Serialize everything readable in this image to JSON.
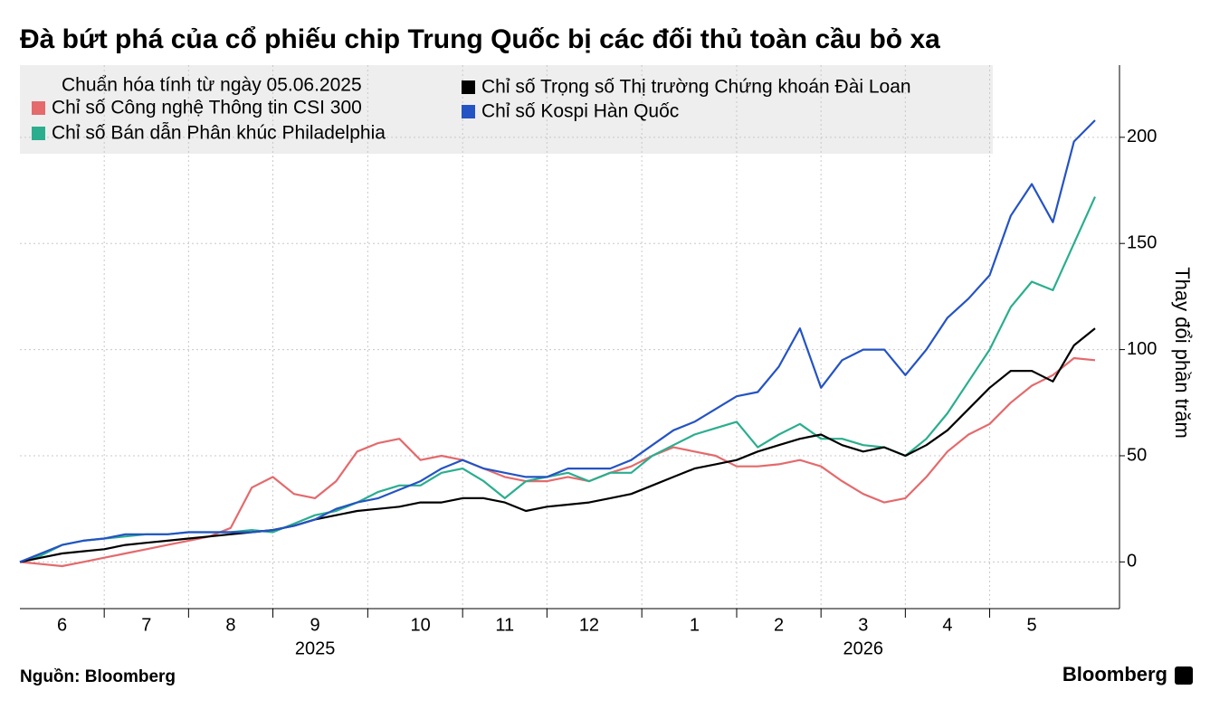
{
  "chart_data": {
    "type": "line",
    "title": "Đà bứt phá của cổ phiếu chip Trung Quốc bị các đối thủ toàn cầu bỏ xa",
    "legend_title": "Chuẩn hóa tính từ ngày 05.06.2025",
    "legend": "top-left",
    "y_label": "Thay đổi phần trăm",
    "source": "Nguồn: Bloomberg",
    "logo": "Bloomberg",
    "years": [
      "2025",
      "2026"
    ],
    "categories": [
      null,
      null,
      "6",
      null,
      null,
      null,
      "7",
      null,
      null,
      null,
      "8",
      null,
      null,
      null,
      "9",
      null,
      null,
      null,
      null,
      "10",
      null,
      null,
      null,
      "11",
      null,
      null,
      null,
      "12",
      null,
      null,
      null,
      null,
      "1",
      null,
      null,
      null,
      "2",
      null,
      null,
      null,
      "3",
      null,
      null,
      null,
      "4",
      null,
      null,
      null,
      "5",
      null,
      null,
      null
    ],
    "ylim": [
      -22,
      234
    ],
    "yticks": [
      0,
      50,
      100,
      150,
      200
    ],
    "grid": true,
    "series": [
      {
        "name": "Chỉ số Công nghệ Thông tin CSI 300",
        "color": "#e46a6c",
        "values": [
          0,
          -1,
          -2,
          0,
          2,
          4,
          6,
          8,
          10,
          12,
          16,
          35,
          40,
          32,
          30,
          38,
          52,
          56,
          58,
          48,
          50,
          48,
          44,
          40,
          38,
          38,
          40,
          38,
          42,
          45,
          50,
          54,
          52,
          50,
          45,
          45,
          46,
          48,
          45,
          38,
          32,
          28,
          30,
          40,
          52,
          60,
          65,
          75,
          83,
          88,
          96,
          95
        ]
      },
      {
        "name": "Chỉ số Bán dẫn Phân khúc Philadelphia",
        "color": "#2aae8e",
        "values": [
          0,
          3,
          8,
          10,
          11,
          12,
          13,
          13,
          14,
          14,
          14,
          15,
          14,
          18,
          22,
          24,
          28,
          33,
          36,
          36,
          42,
          44,
          38,
          30,
          38,
          40,
          42,
          38,
          42,
          42,
          50,
          55,
          60,
          63,
          66,
          54,
          60,
          65,
          58,
          58,
          55,
          54,
          50,
          58,
          70,
          85,
          100,
          120,
          132,
          128,
          150,
          172
        ]
      },
      {
        "name": "Chỉ số Trọng số Thị trường Chứng khoán Đài Loan",
        "color": "#000000",
        "values": [
          0,
          2,
          4,
          5,
          6,
          8,
          9,
          10,
          11,
          12,
          13,
          14,
          15,
          17,
          20,
          22,
          24,
          25,
          26,
          28,
          28,
          30,
          30,
          28,
          24,
          26,
          27,
          28,
          30,
          32,
          36,
          40,
          44,
          46,
          48,
          52,
          55,
          58,
          60,
          55,
          52,
          54,
          50,
          55,
          62,
          72,
          82,
          90,
          90,
          85,
          102,
          110
        ]
      },
      {
        "name": "Chỉ số Kospi Hàn Quốc",
        "color": "#2453c4",
        "values": [
          0,
          4,
          8,
          10,
          11,
          13,
          13,
          13,
          14,
          14,
          14,
          14,
          15,
          17,
          20,
          25,
          28,
          30,
          34,
          38,
          44,
          48,
          44,
          42,
          40,
          40,
          44,
          44,
          44,
          48,
          55,
          62,
          66,
          72,
          78,
          80,
          92,
          110,
          82,
          95,
          100,
          100,
          88,
          100,
          115,
          124,
          135,
          163,
          178,
          160,
          198,
          208
        ]
      }
    ]
  }
}
